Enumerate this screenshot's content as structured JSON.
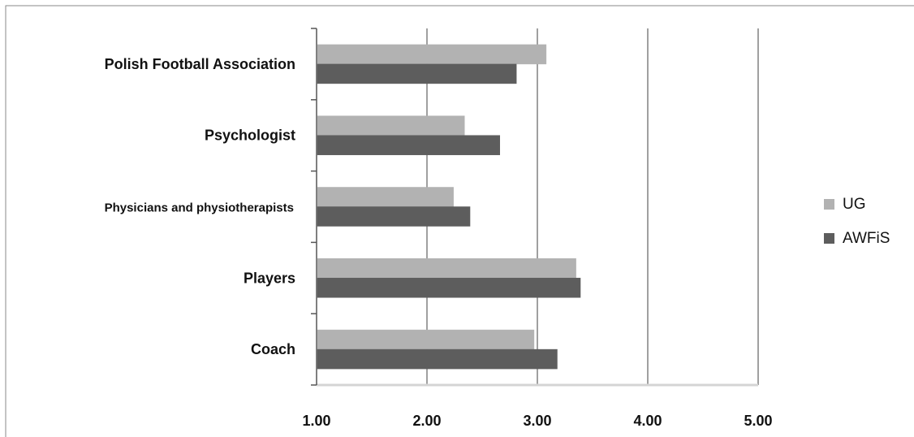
{
  "chart_data": {
    "type": "bar",
    "orientation": "horizontal",
    "categories": [
      "Polish Football Association",
      "Psychologist",
      "Physicians and physiotherapists",
      "Players",
      "Coach"
    ],
    "series": [
      {
        "name": "UG",
        "color": "#b2b2b2",
        "values": [
          3.08,
          2.34,
          2.24,
          3.35,
          2.97
        ]
      },
      {
        "name": "AWFiS",
        "color": "#5d5d5d",
        "values": [
          2.81,
          2.66,
          2.39,
          3.39,
          3.18
        ]
      }
    ],
    "xticks": [
      "1.00",
      "2.00",
      "3.00",
      "4.00",
      "5.00"
    ],
    "xlim": [
      1,
      5
    ],
    "grid": true,
    "legend_position": "right"
  }
}
